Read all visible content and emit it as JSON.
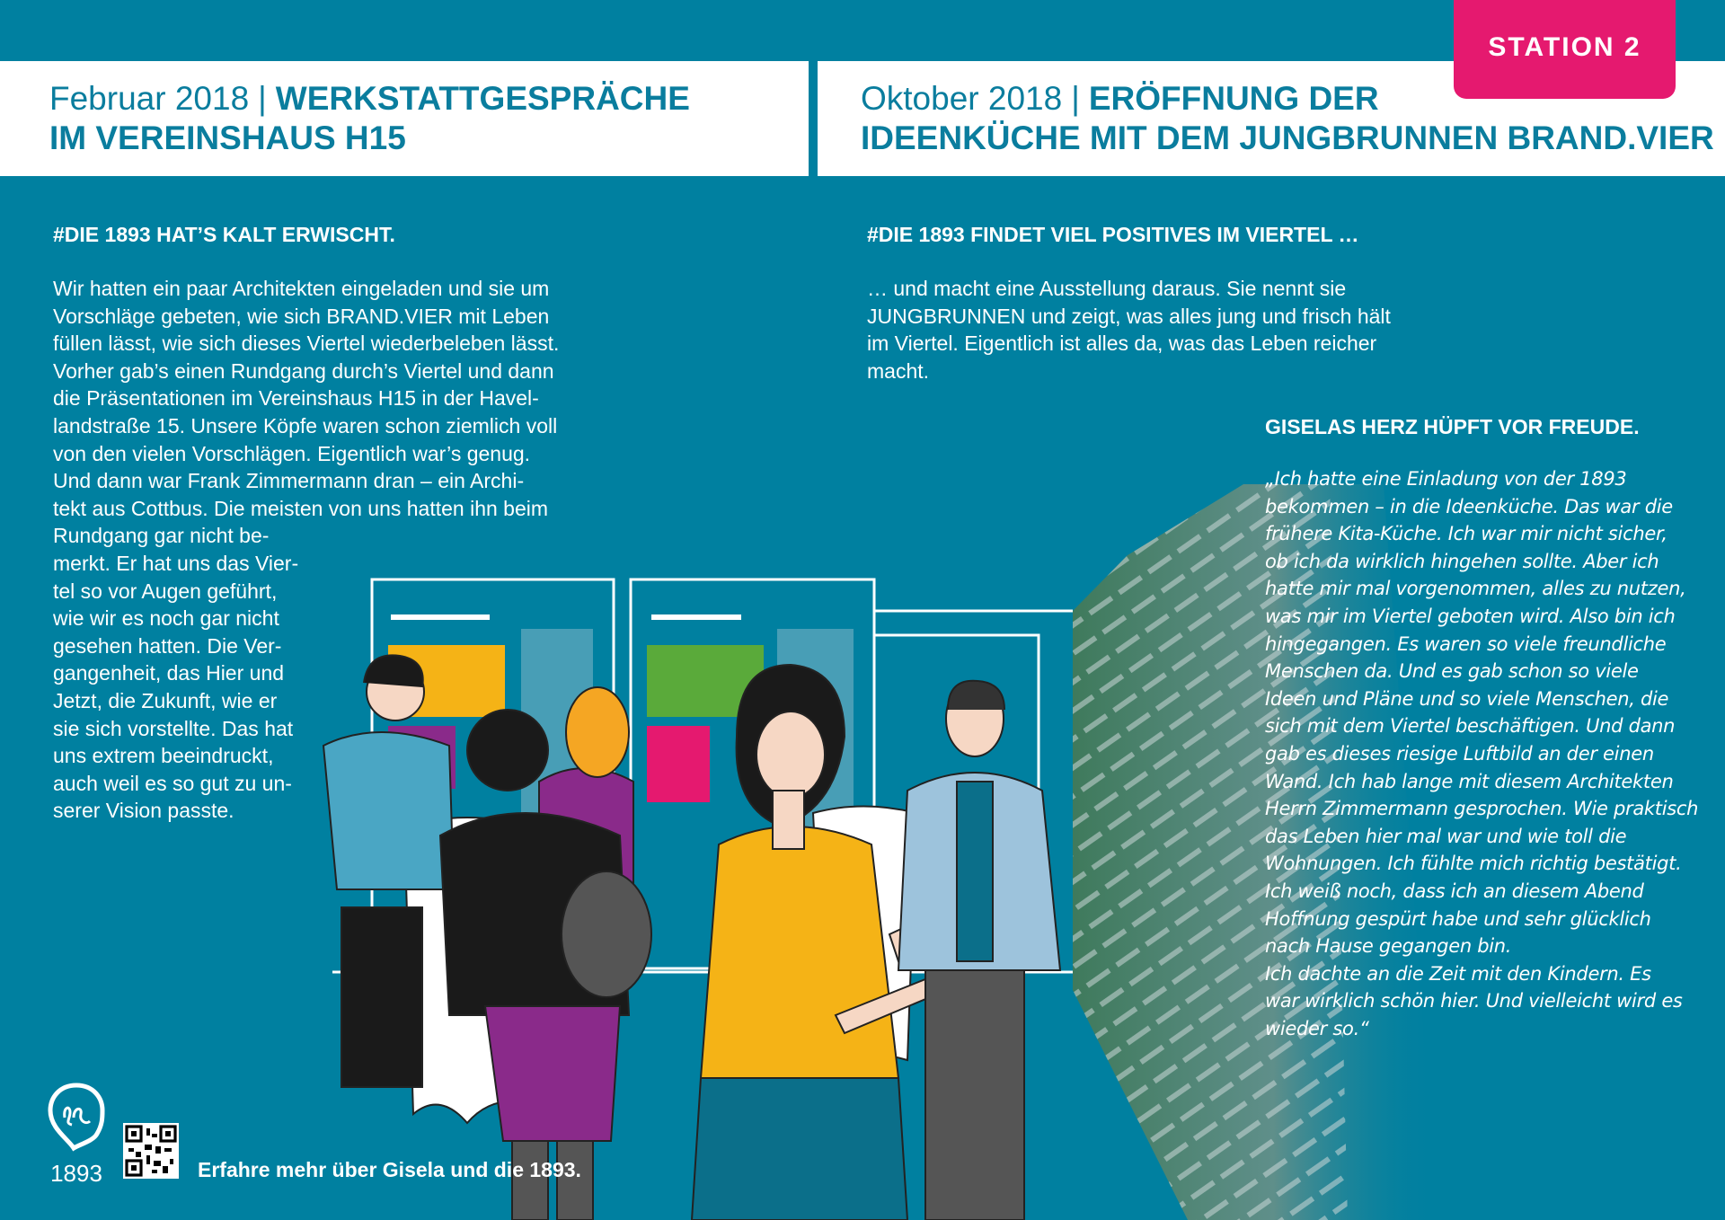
{
  "colors": {
    "background": "#0080a0",
    "header_text": "#0a7d9e",
    "badge": "#e5196f"
  },
  "badge": {
    "label": "STATION 2"
  },
  "left": {
    "date": "Februar 2018",
    "separator": "|",
    "title_line1": "WERKSTATTGESPRÄCHE",
    "title_line2": "IM VEREINSHAUS H15",
    "heading": "#DIE 1893 HAT’S KALT ERWISCHT.",
    "body_lines": [
      "Wir hatten ein paar Architekten eingeladen und sie um",
      "Vorschläge gebeten, wie sich BRAND.VIER mit Leben",
      "füllen lässt, wie sich dieses Viertel wiederbeleben lässt.",
      "Vorher gab’s einen Rundgang durch’s Viertel und dann",
      "die Präsentationen im Vereinshaus H15 in der Havel-",
      "landstraße 15. Unsere Köpfe waren schon ziemlich voll",
      "von den vielen Vorschlägen. Eigentlich war’s genug.",
      "Und dann war Frank Zimmermann dran – ein Archi-",
      "tekt aus Cottbus. Die meisten von uns hatten ihn beim",
      "Rundgang gar nicht be-",
      "merkt. Er hat uns das Vier-",
      "tel so vor Augen geführt,",
      "wie wir es noch gar nicht",
      "gesehen hatten. Die Ver-",
      "gangenheit, das Hier und",
      "Jetzt, die Zukunft, wie er",
      "sie sich vorstellte. Das hat",
      "uns extrem beeindruckt,",
      "auch weil es so gut zu un-",
      "serer Vision passte."
    ]
  },
  "right": {
    "date": "Oktober 2018",
    "separator": "|",
    "title_line1": "ERÖFFNUNG DER",
    "title_line2": "IDEENKÜCHE MIT DEM JUNGBRUNNEN BRAND.VIER",
    "heading": "#DIE 1893 FINDET VIEL POSITIVES IM VIERTEL …",
    "body_lines": [
      "… und macht eine Ausstellung daraus. Sie nennt sie",
      "JUNGBRUNNEN und zeigt, was alles jung und frisch hält",
      "im Viertel. Eigentlich ist alles da, was das Leben reicher",
      "macht."
    ],
    "quote_heading": "GISELAS HERZ HÜPFT VOR FREUDE.",
    "quote_lines": [
      "„Ich hatte eine Einladung von der 1893",
      "bekommen – in die Ideenküche. Das war die",
      "frühere Kita-Küche. Ich war mir nicht sicher,",
      "ob ich da wirklich hingehen sollte. Aber ich",
      "hatte mir mal vorgenommen, alles zu nutzen,",
      "was mir im Viertel geboten wird. Also bin ich",
      "hingegangen. Es waren so viele freundliche",
      "Menschen da. Und es gab schon so viele",
      "Ideen und Pläne und so viele Menschen, die",
      "sich mit dem Viertel beschäftigen. Und dann",
      "gab es dieses riesige Luftbild an der einen",
      "Wand. Ich hab lange mit diesem Architekten",
      "Herrn Zimmermann gesprochen. Wie praktisch",
      "das Leben hier mal war und wie toll die",
      "Wohnungen. Ich fühlte mich richtig bestätigt.",
      "Ich weiß noch, dass ich an diesem Abend",
      "Hoffnung gespürt habe und sehr glücklich",
      "nach Hause gegangen bin.",
      "Ich dachte an die Zeit mit den Kindern. Es",
      "war wirklich schön hier. Und vielleicht wird es",
      "wieder so.“"
    ]
  },
  "footer": {
    "logo_text": "1893",
    "logo_icon": "location-pin-heart-icon",
    "qr_icon": "qr-code-icon",
    "cta": "Erfahre mehr über Gisela und die 1893."
  }
}
